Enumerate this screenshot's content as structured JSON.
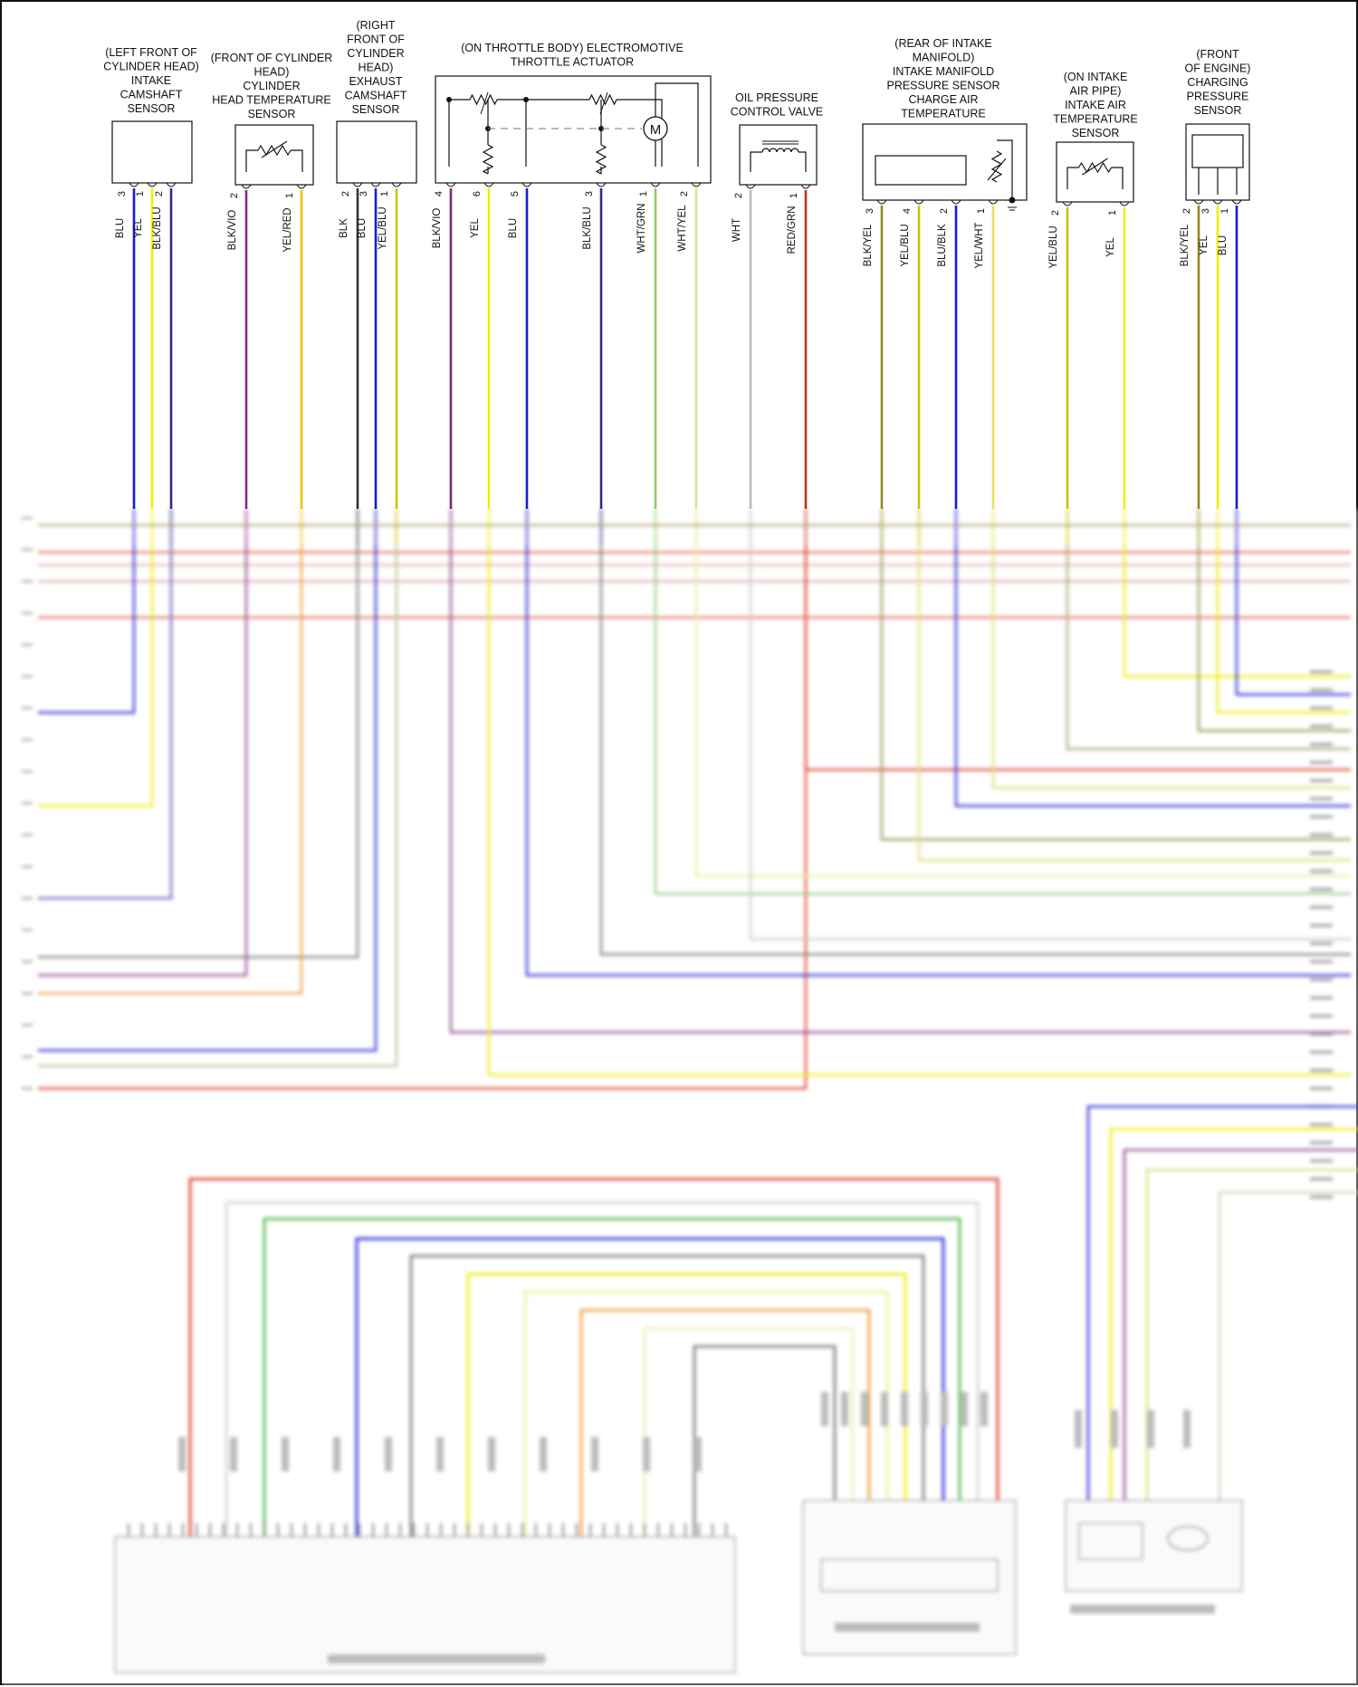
{
  "components": [
    {
      "id": "intake-cam",
      "title": [
        "(LEFT FRONT OF",
        "CYLINDER HEAD)",
        "INTAKE",
        "CAMSHAFT",
        "SENSOR"
      ],
      "pins": [
        {
          "num": "3",
          "wire": "BLU",
          "color": "#1a1ad6"
        },
        {
          "num": "1",
          "wire": "YEL",
          "color": "#f2ee00"
        },
        {
          "num": "2",
          "wire": "BLK/BLU",
          "color": "#2b2b8a"
        }
      ]
    },
    {
      "id": "head-temp",
      "title": [
        "(FRONT OF CYLINDER",
        "HEAD)",
        "CYLINDER",
        "HEAD TEMPERATURE",
        "SENSOR"
      ],
      "pins": [
        {
          "num": "2",
          "wire": "BLK/VIO",
          "color": "#8a2a8a"
        },
        {
          "num": "1",
          "wire": "YEL/RED",
          "color": "#f2c000"
        }
      ]
    },
    {
      "id": "exhaust-cam",
      "title": [
        "(RIGHT",
        "FRONT OF",
        "CYLINDER",
        "HEAD)",
        "EXHAUST",
        "CAMSHAFT",
        "SENSOR"
      ],
      "pins": [
        {
          "num": "2",
          "wire": "BLK",
          "color": "#333333"
        },
        {
          "num": "3",
          "wire": "BLU",
          "color": "#1a1ad6"
        },
        {
          "num": "1",
          "wire": "YEL/BLU",
          "color": "#c9c400"
        }
      ]
    },
    {
      "id": "throttle",
      "title": [
        "(ON THROTTLE BODY) ELECTROMOTIVE",
        "THROTTLE ACTUATOR"
      ],
      "motor_label": "M",
      "pins": [
        {
          "num": "4",
          "wire": "BLK/VIO",
          "color": "#7a2a7a"
        },
        {
          "num": "6",
          "wire": "YEL",
          "color": "#f2ee00"
        },
        {
          "num": "5",
          "wire": "BLU",
          "color": "#1a1ad6"
        },
        {
          "num": "3",
          "wire": "BLK/BLU",
          "color": "#2b2b8a"
        },
        {
          "num": "1",
          "wire": "WHT/GRN",
          "color": "#8ccf6a"
        },
        {
          "num": "2",
          "wire": "WHT/YEL",
          "color": "#d9e48a"
        }
      ]
    },
    {
      "id": "oil-valve",
      "title": [
        "OIL PRESSURE",
        "CONTROL VALVE"
      ],
      "pins": [
        {
          "num": "2",
          "wire": "WHT",
          "color": "#bbbbbb"
        },
        {
          "num": "1",
          "wire": "RED/GRN",
          "color": "#b8341a"
        }
      ]
    },
    {
      "id": "manifold",
      "title": [
        "(REAR OF INTAKE",
        "MANIFOLD)",
        "INTAKE MANIFOLD",
        "PRESSURE SENSOR",
        "CHARGE AIR",
        "TEMPERATURE"
      ],
      "pins": [
        {
          "num": "3",
          "wire": "BLK/YEL",
          "color": "#8f8a1a"
        },
        {
          "num": "4",
          "wire": "YEL/BLU",
          "color": "#c9c400"
        },
        {
          "num": "2",
          "wire": "BLU/BLK",
          "color": "#1a1ad6"
        },
        {
          "num": "1",
          "wire": "YEL/WHT",
          "color": "#e6e25a"
        }
      ]
    },
    {
      "id": "iat",
      "title": [
        "(ON INTAKE",
        "AIR PIPE)",
        "INTAKE AIR",
        "TEMPERATURE",
        "SENSOR"
      ],
      "pins": [
        {
          "num": "2",
          "wire": "YEL/BLU",
          "color": "#c9c400"
        },
        {
          "num": "1",
          "wire": "YEL",
          "color": "#f2ee00"
        }
      ]
    },
    {
      "id": "charging",
      "title": [
        "(FRONT",
        "OF ENGINE)",
        "CHARGING",
        "PRESSURE",
        "SENSOR"
      ],
      "pins": [
        {
          "num": "2",
          "wire": "BLK/YEL",
          "color": "#8f8a1a"
        },
        {
          "num": "3",
          "wire": "YEL",
          "color": "#f2ee00"
        },
        {
          "num": "1",
          "wire": "BLU",
          "color": "#1a1ad6"
        }
      ]
    }
  ],
  "colors": {
    "background": "#ffffff",
    "line": "#111111",
    "red": "#e0503c",
    "blue": "#3c3cdc",
    "yellow": "#f0ec20",
    "gray": "#888888",
    "green": "#5fbf5f",
    "orange": "#f0a850",
    "violet": "#9a5a9a",
    "olive": "#a0a060"
  }
}
